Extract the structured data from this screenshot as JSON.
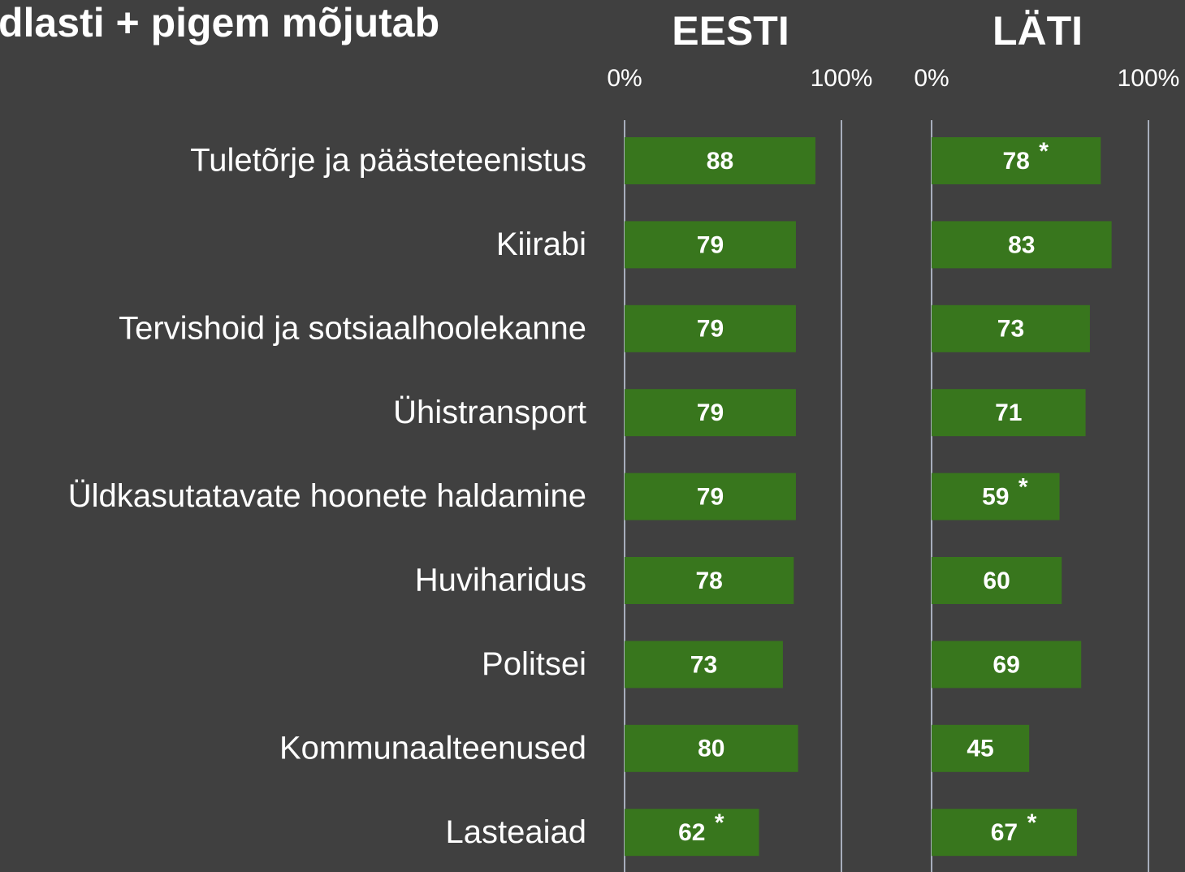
{
  "title": "dlasti + pigem mõjutab",
  "chart_data": [
    {
      "type": "bar",
      "orientation": "horizontal",
      "title": "EESTI",
      "categories": [
        "Tuletõrje ja päästeteenistus",
        "Kiirabi",
        "Tervishoid ja sotsiaalhoolekanne",
        "Ühistransport",
        "Üldkasutatavate hoonete haldamine",
        "Huviharidus",
        "Politsei",
        "Kommunaalteenused",
        "Lasteaiad"
      ],
      "values": [
        88,
        79,
        79,
        79,
        79,
        78,
        73,
        80,
        62
      ],
      "annotations": [
        null,
        null,
        null,
        null,
        null,
        null,
        null,
        null,
        "*"
      ],
      "color": "#38761d",
      "xlim": [
        0,
        100
      ],
      "xticks": [
        {
          "value": 0,
          "label": "0%"
        },
        {
          "value": 100,
          "label": "100%"
        }
      ]
    },
    {
      "type": "bar",
      "orientation": "horizontal",
      "title": "LÄTI",
      "values": [
        78,
        83,
        73,
        71,
        59,
        60,
        69,
        45,
        67
      ],
      "annotations": [
        "*",
        null,
        null,
        null,
        "*",
        null,
        null,
        null,
        "*"
      ],
      "color": "#38761d",
      "xlim": [
        0,
        100
      ],
      "xticks": [
        {
          "value": 0,
          "label": "0%"
        },
        {
          "value": 100,
          "label": "100%"
        }
      ]
    }
  ]
}
